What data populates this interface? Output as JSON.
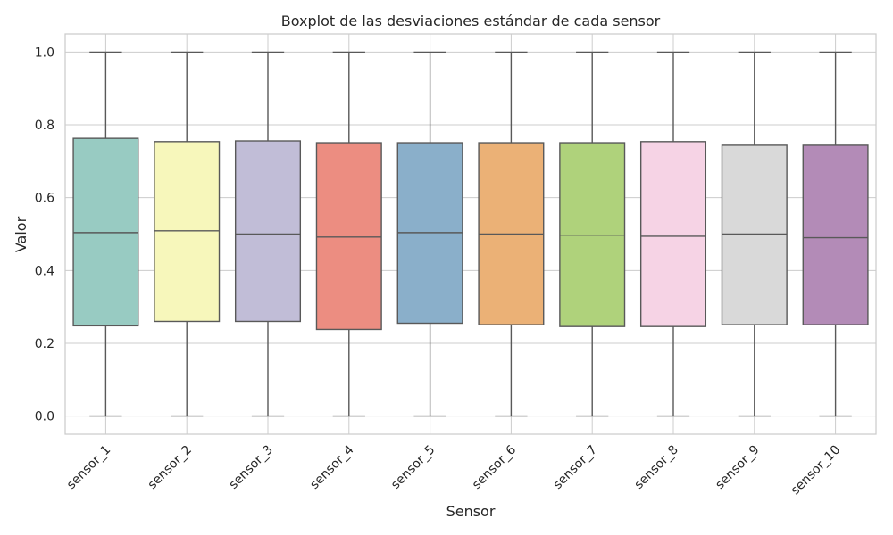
{
  "chart_data": {
    "type": "boxplot",
    "title": "Boxplot de las desviaciones estándar de cada sensor",
    "xlabel": "Sensor",
    "ylabel": "Valor",
    "ylim": [
      -0.05,
      1.05
    ],
    "yticks": [
      "0.0",
      "0.2",
      "0.4",
      "0.6",
      "0.8",
      "1.0"
    ],
    "grid": true,
    "categories": [
      "sensor_1",
      "sensor_2",
      "sensor_3",
      "sensor_4",
      "sensor_5",
      "sensor_6",
      "sensor_7",
      "sensor_8",
      "sensor_9",
      "sensor_10"
    ],
    "boxes": [
      {
        "min": 0.0,
        "q1": 0.248,
        "median": 0.504,
        "q3": 0.763,
        "max": 1.0,
        "color": "#98cbc2"
      },
      {
        "min": 0.0,
        "q1": 0.26,
        "median": 0.509,
        "q3": 0.754,
        "max": 1.0,
        "color": "#f7f7bb"
      },
      {
        "min": 0.0,
        "q1": 0.26,
        "median": 0.5,
        "q3": 0.756,
        "max": 1.0,
        "color": "#c1bdd7"
      },
      {
        "min": 0.0,
        "q1": 0.238,
        "median": 0.492,
        "q3": 0.751,
        "max": 1.0,
        "color": "#ec8d81"
      },
      {
        "min": 0.0,
        "q1": 0.255,
        "median": 0.504,
        "q3": 0.751,
        "max": 1.0,
        "color": "#8aafca"
      },
      {
        "min": 0.0,
        "q1": 0.251,
        "median": 0.5,
        "q3": 0.751,
        "max": 1.0,
        "color": "#ebb176"
      },
      {
        "min": 0.0,
        "q1": 0.246,
        "median": 0.497,
        "q3": 0.751,
        "max": 1.0,
        "color": "#afd27b"
      },
      {
        "min": 0.0,
        "q1": 0.246,
        "median": 0.494,
        "q3": 0.754,
        "max": 1.0,
        "color": "#f6d3e5"
      },
      {
        "min": 0.0,
        "q1": 0.251,
        "median": 0.5,
        "q3": 0.744,
        "max": 1.0,
        "color": "#d9d9d9"
      },
      {
        "min": 0.0,
        "q1": 0.251,
        "median": 0.49,
        "q3": 0.744,
        "max": 1.0,
        "color": "#b38bb7"
      }
    ],
    "colors": {
      "frame": "#cccccc",
      "grid": "#cccccc",
      "line": "#595959",
      "text": "#262626"
    }
  }
}
